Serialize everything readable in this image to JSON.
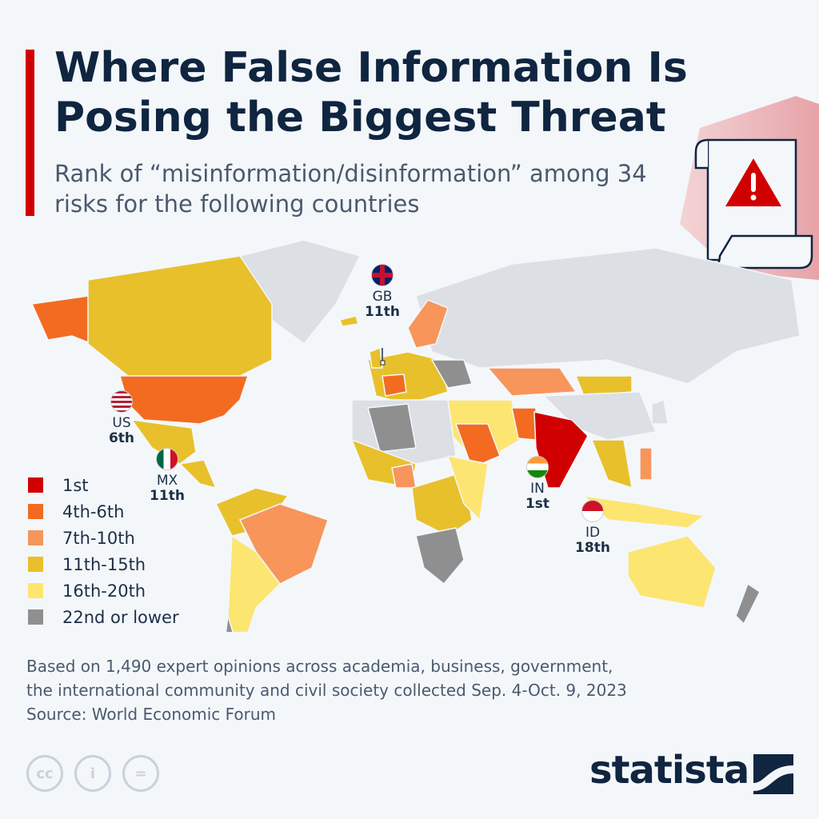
{
  "header": {
    "title": "Where False Information Is Posing the Biggest Threat",
    "subtitle": "Rank of “misinformation/disinformation” among 34 risks for the following countries"
  },
  "icon": "warning-scroll-icon",
  "chart_data": {
    "type": "choropleth",
    "legend": [
      {
        "label": "1st",
        "color": "#d10000"
      },
      {
        "label": "4th-6th",
        "color": "#f26b21"
      },
      {
        "label": "7th-10th",
        "color": "#f7955b"
      },
      {
        "label": "11th-15th",
        "color": "#e8c02b"
      },
      {
        "label": "16th-20th",
        "color": "#fde571"
      },
      {
        "label": "22nd or lower",
        "color": "#8f8f8f"
      }
    ],
    "no_data_color": "#dcdfe3",
    "highlighted": [
      {
        "code": "US",
        "rank": "6th"
      },
      {
        "code": "MX",
        "rank": "11th"
      },
      {
        "code": "GB",
        "rank": "11th"
      },
      {
        "code": "IN",
        "rank": "1st"
      },
      {
        "code": "ID",
        "rank": "18th"
      }
    ]
  },
  "footer": {
    "note1": "Based on 1,490 expert opinions across academia, business, government,",
    "note2": "the international community and civil society collected Sep. 4-Oct. 9, 2023",
    "source": "Source: World Economic Forum"
  },
  "license": {
    "cc": "cc",
    "by": "i",
    "nd": "="
  },
  "brand": {
    "name": "statista"
  }
}
